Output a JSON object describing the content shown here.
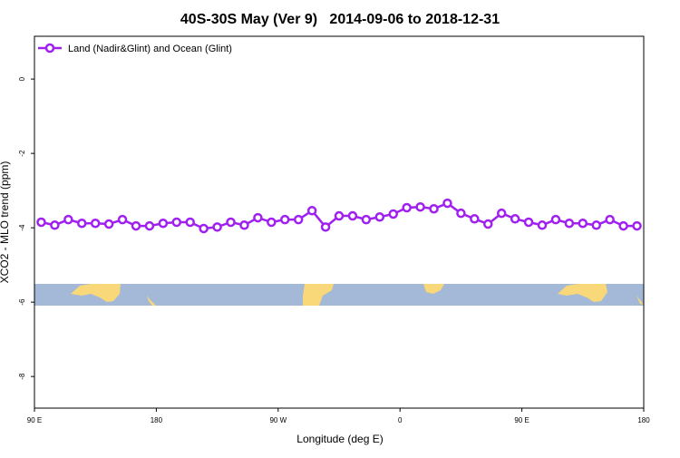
{
  "chart_data": {
    "type": "line",
    "title": "40S-30S May (Ver 9)   2014-09-06 to 2018-12-31",
    "x_label": "Longitude (deg E)",
    "y_label": "XCO2 - MLO trend (ppm)",
    "xlim": [
      90,
      540
    ],
    "ylim": [
      -8.85,
      1.15
    ],
    "xticks": [
      {
        "value": 90,
        "label": "90 E"
      },
      {
        "value": 180,
        "label": "180"
      },
      {
        "value": 270,
        "label": "90 W"
      },
      {
        "value": 360,
        "label": "0"
      },
      {
        "value": 450,
        "label": "90 E"
      },
      {
        "value": 540,
        "label": "180"
      }
    ],
    "yticks": [
      0,
      -2,
      -4,
      -6,
      -8
    ],
    "legend": "top-left",
    "x": [
      95,
      105,
      115,
      125,
      135,
      145,
      155,
      165,
      175,
      185,
      195,
      205,
      215,
      225,
      235,
      245,
      255,
      265,
      275,
      285,
      295,
      305,
      315,
      325,
      335,
      345,
      355,
      365,
      375,
      385,
      395,
      405,
      415,
      425,
      435,
      445,
      455,
      465,
      475,
      485,
      495,
      505,
      515,
      525,
      535
    ],
    "series": [
      {
        "name": "Land (Nadir&Glint) and Ocean (Glint)",
        "color": "#a020f0",
        "values": [
          -3.85,
          -3.93,
          -3.78,
          -3.88,
          -3.88,
          -3.9,
          -3.78,
          -3.95,
          -3.95,
          -3.88,
          -3.85,
          -3.85,
          -4.02,
          -3.98,
          -3.85,
          -3.93,
          -3.73,
          -3.85,
          -3.78,
          -3.78,
          -3.54,
          -3.98,
          -3.68,
          -3.68,
          -3.78,
          -3.71,
          -3.63,
          -3.46,
          -3.44,
          -3.49,
          -3.34,
          -3.61,
          -3.76,
          -3.9,
          -3.61,
          -3.76,
          -3.85,
          -3.93,
          -3.78,
          -3.88,
          -3.88,
          -3.93,
          -3.78,
          -3.95,
          -3.95
        ]
      }
    ]
  }
}
